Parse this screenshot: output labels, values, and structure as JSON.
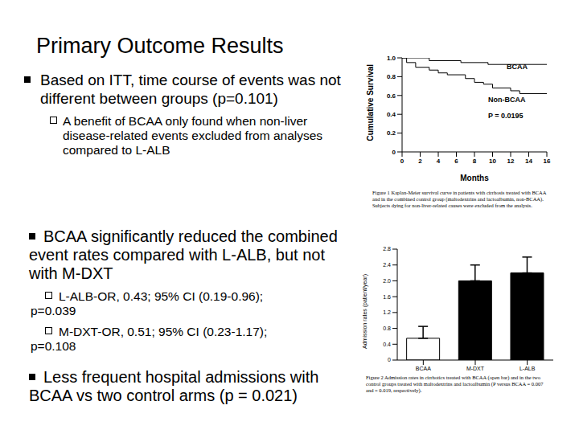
{
  "title": "Primary Outcome Results",
  "bullets": [
    {
      "text": "Based on ITT, time course of events was not different between groups (p=0.101)",
      "sub": [
        "A benefit of BCAA only found when non-liver disease-related events excluded from analyses compared to L-ALB"
      ]
    },
    {
      "text": "BCAA significantly reduced the combined event rates compared with L-ALB, but not with M-DXT",
      "sub": [
        "L-ALB-OR, 0.43; 95% CI (0.19-0.96); p=0.039",
        "M-DXT-OR, 0.51; 95% CI (0.23-1.17); p=0.108"
      ]
    },
    {
      "text": "Less frequent hospital admissions with BCAA vs two control arms (p = 0.021)",
      "sub": []
    }
  ],
  "chart_data": [
    {
      "type": "line",
      "y_label": "Cumulative Survival",
      "x_label": "Months",
      "annotations": [
        "P = 0.0195"
      ],
      "series": [
        {
          "name": "BCAA",
          "color": "#000000",
          "line_style": "step",
          "x": [
            0,
            3,
            6.5,
            9.5,
            16
          ],
          "values": [
            1.0,
            0.97,
            0.95,
            0.93,
            0.93
          ]
        },
        {
          "name": "Non-BCAA",
          "color": "#000000",
          "line_style": "step",
          "x": [
            0,
            0.5,
            1.5,
            3,
            4,
            5,
            7,
            8,
            9,
            10,
            12,
            13,
            16
          ],
          "values": [
            1.0,
            0.95,
            0.9,
            0.87,
            0.84,
            0.82,
            0.78,
            0.74,
            0.72,
            0.68,
            0.65,
            0.62,
            0.62
          ]
        }
      ],
      "xlim": [
        0,
        16
      ],
      "xticks": [
        0,
        2,
        4,
        6,
        8,
        10,
        12,
        14,
        16
      ],
      "ylim": [
        0,
        1
      ],
      "yticks": [
        0,
        0.2,
        0.4,
        0.6,
        0.8,
        {
          "value": 1,
          "label": "1.0"
        }
      ],
      "caption": "Figure 1 Kaplan-Meier survival curve in patients with cirrhosis treated with BCAA and in the combined control group (maltodextrins and lactoalbumin, non-BCAA). Subjects dying for non-liver-related causes were excluded from the analysis."
    },
    {
      "type": "bar",
      "y_label": "Admission rates (patient/year)",
      "categories": [
        "BCAA",
        "M-DXT",
        "L-ALB"
      ],
      "values": [
        0.55,
        2.0,
        2.2
      ],
      "errors": [
        0.3,
        0.4,
        0.4
      ],
      "colors": [
        "#ffffff",
        "#000000",
        "#000000"
      ],
      "ylim": [
        0,
        2.8
      ],
      "yticks": [
        0,
        0.4,
        0.8,
        1.2,
        1.6,
        {
          "value": 2,
          "label": "2.0"
        },
        2.4,
        2.8
      ],
      "caption": "Figure 2 Admission rates in cirrhotics treated with BCAA (open bar) and in the two control groups treated with maltodextrins and lactoalbumin (P versus BCAA = 0.007 and = 0.019, respectively)."
    }
  ]
}
